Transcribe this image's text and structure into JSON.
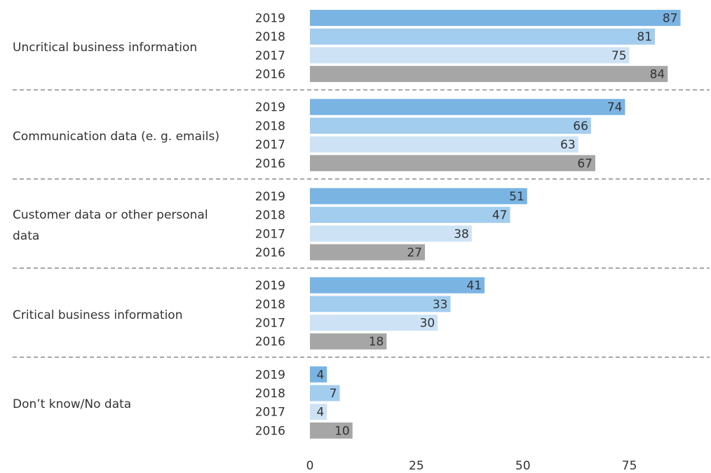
{
  "chart_data": {
    "type": "hbar",
    "categories": [
      "Uncritical business information",
      "Communication data (e. g. emails)",
      "Customer data or other personal data",
      "Critical business information",
      "Don’t know/No data"
    ],
    "series": [
      {
        "name": "2019",
        "color": "#7ab4e3",
        "values": [
          87,
          74,
          51,
          41,
          4
        ]
      },
      {
        "name": "2018",
        "color": "#a3cdee",
        "values": [
          81,
          66,
          47,
          33,
          7
        ]
      },
      {
        "name": "2017",
        "color": "#cde3f5",
        "values": [
          75,
          63,
          38,
          30,
          4
        ]
      },
      {
        "name": "2016",
        "color": "#a6a6a6",
        "values": [
          84,
          67,
          27,
          18,
          10
        ]
      }
    ],
    "xlim": [
      0,
      94
    ],
    "xticks": [
      0,
      25,
      50,
      75
    ]
  }
}
